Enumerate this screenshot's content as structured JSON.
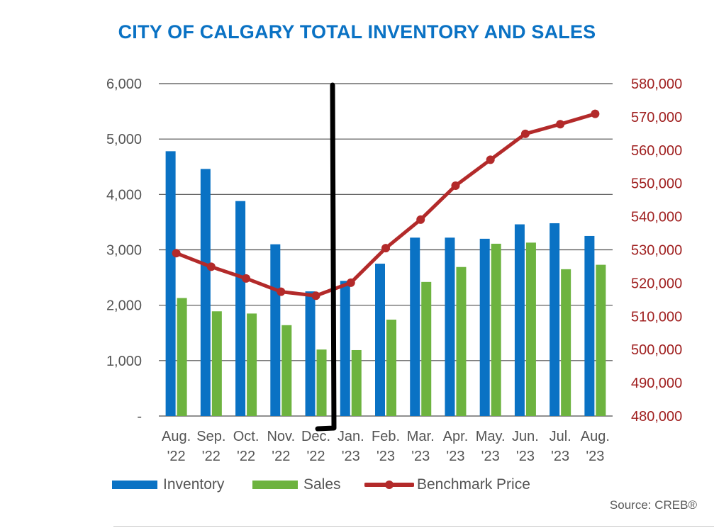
{
  "colors": {
    "title": "#0a72c4",
    "inventory": "#0a72c4",
    "sales": "#6db33f",
    "benchmark": "#b32a2a",
    "grid": "#4d4d4d",
    "left_axis_text": "#555555",
    "right_axis_text": "#a02020",
    "annotation": "#000000"
  },
  "source": "Source: CREB®",
  "chart_data": {
    "type": "bar",
    "title": "CITY OF CALGARY TOTAL INVENTORY AND SALES",
    "categories": [
      [
        "Aug.",
        "'22"
      ],
      [
        "Sep.",
        "'22"
      ],
      [
        "Oct.",
        "'22"
      ],
      [
        "Nov.",
        "'22"
      ],
      [
        "Dec.",
        "'22"
      ],
      [
        "Jan.",
        "'23"
      ],
      [
        "Feb.",
        "'23"
      ],
      [
        "Mar.",
        "'23"
      ],
      [
        "Apr.",
        "'23"
      ],
      [
        "May.",
        "'23"
      ],
      [
        "Jun.",
        "'23"
      ],
      [
        "Jul.",
        "'23"
      ],
      [
        "Aug.",
        "'23"
      ]
    ],
    "series": [
      {
        "name": "Inventory",
        "type": "bar",
        "axis": "left",
        "values": [
          4780,
          4460,
          3880,
          3100,
          2250,
          2440,
          2750,
          3220,
          3220,
          3200,
          3460,
          3480,
          3250
        ]
      },
      {
        "name": "Sales",
        "type": "bar",
        "axis": "left",
        "values": [
          2130,
          1890,
          1850,
          1640,
          1200,
          1190,
          1740,
          2420,
          2690,
          3110,
          3130,
          2650,
          2730
        ]
      },
      {
        "name": "Benchmark Price",
        "type": "line",
        "axis": "right",
        "values": [
          529000,
          524900,
          521400,
          517400,
          516200,
          520100,
          530500,
          539100,
          549300,
          557100,
          564900,
          567800,
          570900
        ]
      }
    ],
    "y_left": {
      "min": 0,
      "max": 6000,
      "ticks": [
        {
          "value": 0,
          "label": "-"
        },
        {
          "value": 1000,
          "label": "1,000"
        },
        {
          "value": 2000,
          "label": "2,000"
        },
        {
          "value": 3000,
          "label": "3,000"
        },
        {
          "value": 4000,
          "label": "4,000"
        },
        {
          "value": 5000,
          "label": "5,000"
        },
        {
          "value": 6000,
          "label": "6,000"
        }
      ]
    },
    "y_right": {
      "min": 480000,
      "max": 580000,
      "ticks": [
        {
          "value": 480000,
          "label": "480,000"
        },
        {
          "value": 490000,
          "label": "490,000"
        },
        {
          "value": 500000,
          "label": "500,000"
        },
        {
          "value": 510000,
          "label": "510,000"
        },
        {
          "value": 520000,
          "label": "520,000"
        },
        {
          "value": 530000,
          "label": "530,000"
        },
        {
          "value": 540000,
          "label": "540,000"
        },
        {
          "value": 550000,
          "label": "550,000"
        },
        {
          "value": 560000,
          "label": "560,000"
        },
        {
          "value": 570000,
          "label": "570,000"
        },
        {
          "value": 580000,
          "label": "580,000"
        }
      ]
    },
    "grid": true,
    "legend": {
      "position": "bottom",
      "items": [
        "Inventory",
        "Sales",
        "Benchmark Price"
      ]
    },
    "annotations": [
      {
        "type": "hand-drawn-bracket",
        "color": "black",
        "between": [
          "Dec.",
          "Jan."
        ]
      }
    ]
  }
}
